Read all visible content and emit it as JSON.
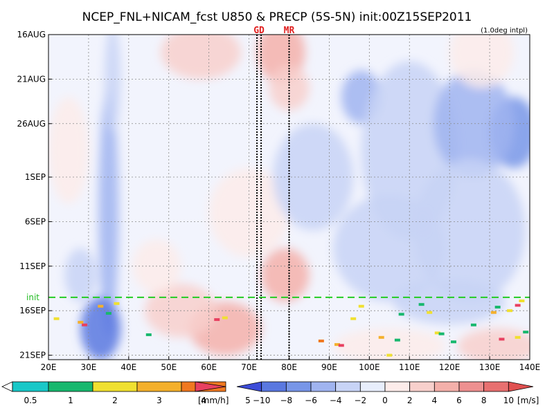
{
  "chart_data": {
    "type": "heatmap",
    "title": "NCEP_FNL+NICAM_fcst U850 & PRECP (5S-5N) init:00Z15SEP2011",
    "subtitle": "(1.0deg intpl)",
    "x_tick_labels": [
      "20E",
      "30E",
      "40E",
      "50E",
      "60E",
      "70E",
      "80E",
      "90E",
      "100E",
      "110E",
      "120E",
      "130E",
      "140E"
    ],
    "x_ticks": [
      20,
      30,
      40,
      50,
      60,
      70,
      80,
      90,
      100,
      110,
      120,
      130,
      140
    ],
    "xlim": [
      20,
      140
    ],
    "y_tick_labels": [
      "16AUG",
      "21AUG",
      "26AUG",
      "1SEP",
      "6SEP",
      "11SEP",
      "16SEP",
      "21SEP"
    ],
    "y_ticks_day": [
      0,
      5,
      10,
      16,
      21,
      26,
      31,
      36
    ],
    "ylim_day": [
      0,
      36.5
    ],
    "init_label": "init",
    "init_day": 29.5,
    "markers": [
      {
        "label": "GD",
        "lon": 72.5
      },
      {
        "label": "MR",
        "lon": 80
      }
    ],
    "precip_colorbar": {
      "labels": [
        "0.5",
        "1",
        "2",
        "3",
        "4",
        "5"
      ],
      "unit": "[mm/h]",
      "colors": [
        "#ffffff",
        "#19c8c8",
        "#18b86e",
        "#f0e030",
        "#f4b02c",
        "#f07820",
        "#e84060"
      ]
    },
    "wind_colorbar": {
      "labels": [
        "-10",
        "-8",
        "-6",
        "-4",
        "-2",
        "0",
        "2",
        "4",
        "6",
        "8",
        "10"
      ],
      "unit": "[m/s]",
      "colors": [
        "#3c4cd8",
        "#5a78e0",
        "#7896e8",
        "#a0b4f0",
        "#c8d4f6",
        "#e8eefc",
        "#fdecea",
        "#f8d0cc",
        "#f4b0aa",
        "#ee9090",
        "#e87070",
        "#e05050"
      ]
    },
    "u850_anomalies": [
      {
        "lon": 35,
        "day": 20,
        "sx": 2.5,
        "sy": 14,
        "v": -4
      },
      {
        "lon": 33,
        "day": 33,
        "sx": 5,
        "sy": 3.5,
        "v": -8
      },
      {
        "lon": 36,
        "day": 5,
        "sx": 2,
        "sy": 6,
        "v": -3
      },
      {
        "lon": 28,
        "day": 27,
        "sx": 4,
        "sy": 3,
        "v": -2.5
      },
      {
        "lon": 78,
        "day": 2,
        "sx": 6,
        "sy": 3.5,
        "v": 5
      },
      {
        "lon": 80,
        "day": 6,
        "sx": 5,
        "sy": 2.5,
        "v": 3.5
      },
      {
        "lon": 58,
        "day": 2,
        "sx": 10,
        "sy": 3,
        "v": 2.5
      },
      {
        "lon": 79,
        "day": 27,
        "sx": 6,
        "sy": 3,
        "v": 5
      },
      {
        "lon": 64,
        "day": 33,
        "sx": 9,
        "sy": 3,
        "v": 4.5
      },
      {
        "lon": 53,
        "day": 31,
        "sx": 9,
        "sy": 3,
        "v": 3
      },
      {
        "lon": 25,
        "day": 13,
        "sx": 5,
        "sy": 6,
        "v": 2
      },
      {
        "lon": 47,
        "day": 26,
        "sx": 6,
        "sy": 3,
        "v": 2
      },
      {
        "lon": 70,
        "day": 20,
        "sx": 10,
        "sy": 5,
        "v": 1.5
      },
      {
        "lon": 98,
        "day": 7,
        "sx": 5,
        "sy": 3,
        "v": -4
      },
      {
        "lon": 86,
        "day": 16,
        "sx": 10,
        "sy": 6,
        "v": -2.5
      },
      {
        "lon": 110,
        "day": 13,
        "sx": 12,
        "sy": 10,
        "v": -2.5
      },
      {
        "lon": 136,
        "day": 11,
        "sx": 6,
        "sy": 4,
        "v": -7
      },
      {
        "lon": 126,
        "day": 10,
        "sx": 10,
        "sy": 6,
        "v": -4
      },
      {
        "lon": 105,
        "day": 24,
        "sx": 14,
        "sy": 6,
        "v": -3
      },
      {
        "lon": 125,
        "day": 22,
        "sx": 14,
        "sy": 8,
        "v": -3.5
      },
      {
        "lon": 120,
        "day": 30,
        "sx": 14,
        "sy": 2.5,
        "v": -3
      },
      {
        "lon": 128,
        "day": 2,
        "sx": 8,
        "sy": 4,
        "v": 2
      },
      {
        "lon": 105,
        "day": 35,
        "sx": 14,
        "sy": 2,
        "v": 1.5
      },
      {
        "lon": 132,
        "day": 35,
        "sx": 10,
        "sy": 2,
        "v": 3
      }
    ],
    "precip_cells": [
      {
        "lon": 33,
        "day": 30.5,
        "v": 3.5
      },
      {
        "lon": 37,
        "day": 30.2,
        "v": 2
      },
      {
        "lon": 35,
        "day": 31.3,
        "v": 1
      },
      {
        "lon": 28,
        "day": 32.3,
        "v": 3
      },
      {
        "lon": 29,
        "day": 32.6,
        "v": 5
      },
      {
        "lon": 22,
        "day": 31.9,
        "v": 2
      },
      {
        "lon": 45,
        "day": 33.7,
        "v": 1
      },
      {
        "lon": 62,
        "day": 32.0,
        "v": 5
      },
      {
        "lon": 64,
        "day": 31.8,
        "v": 2
      },
      {
        "lon": 98,
        "day": 30.5,
        "v": 2
      },
      {
        "lon": 96,
        "day": 31.9,
        "v": 2
      },
      {
        "lon": 103,
        "day": 34.0,
        "v": 3
      },
      {
        "lon": 107,
        "day": 34.3,
        "v": 1
      },
      {
        "lon": 105,
        "day": 36.0,
        "v": 2
      },
      {
        "lon": 92,
        "day": 34.8,
        "v": 3
      },
      {
        "lon": 93,
        "day": 34.9,
        "v": 5
      },
      {
        "lon": 113,
        "day": 30.3,
        "v": 1
      },
      {
        "lon": 115,
        "day": 31.2,
        "v": 2
      },
      {
        "lon": 117,
        "day": 33.5,
        "v": 2
      },
      {
        "lon": 118,
        "day": 33.6,
        "v": 1
      },
      {
        "lon": 126,
        "day": 32.6,
        "v": 1
      },
      {
        "lon": 131,
        "day": 31.2,
        "v": 3
      },
      {
        "lon": 132,
        "day": 30.6,
        "v": 1
      },
      {
        "lon": 135,
        "day": 31.0,
        "v": 2
      },
      {
        "lon": 137,
        "day": 30.4,
        "v": 5
      },
      {
        "lon": 138,
        "day": 29.9,
        "v": 2
      },
      {
        "lon": 133,
        "day": 34.2,
        "v": 5
      },
      {
        "lon": 137,
        "day": 34.0,
        "v": 2
      },
      {
        "lon": 139,
        "day": 33.4,
        "v": 1
      },
      {
        "lon": 121,
        "day": 34.5,
        "v": 1
      },
      {
        "lon": 88,
        "day": 34.4,
        "v": 4
      },
      {
        "lon": 108,
        "day": 31.4,
        "v": 1
      }
    ]
  }
}
